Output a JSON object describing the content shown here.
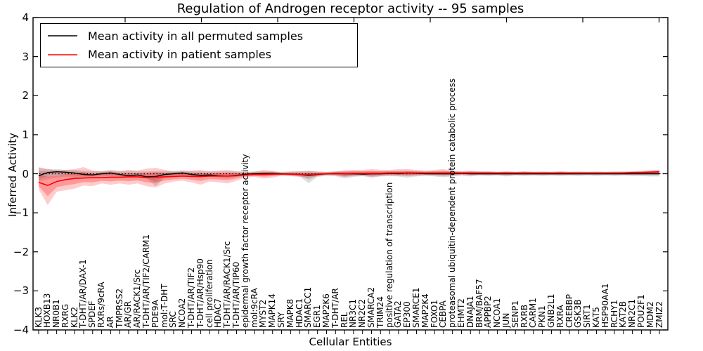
{
  "chart_data": {
    "type": "line",
    "title": "Regulation of Androgen receptor activity -- 95 samples",
    "xlabel": "Cellular Entities",
    "ylabel": "Inferred Activity",
    "ylim": [
      -4,
      4
    ],
    "ytick_labels": [
      "4",
      "3",
      "2",
      "1",
      "0",
      "−1",
      "−2",
      "−3",
      "−4"
    ],
    "ytick_values": [
      4,
      3,
      2,
      1,
      0,
      -1,
      -2,
      -3,
      -4
    ],
    "grid": false,
    "zero_line": {
      "style": "dotted",
      "color": "#000000",
      "y": 0
    },
    "colors": {
      "permuted_line": "#000000",
      "patient_line": "#ff0000",
      "permuted_band": "#999999",
      "patient_band": "#ff0000",
      "axis": "#000000"
    },
    "legend": {
      "position": "upper-left",
      "entries": [
        {
          "label": "Mean activity in all permuted samples",
          "color": "#000000"
        },
        {
          "label": "Mean activity in patient samples",
          "color": "#ff0000"
        }
      ]
    },
    "categories": [
      "KLK3",
      "HOXB13",
      "NR0B1",
      "RXRG",
      "KLK2",
      "T-DHT/AR/DAX-1",
      "SPDEF",
      "RXRs/9cRA",
      "AR",
      "TMPRSS2",
      "AR/GR",
      "AR/RACK1/Src",
      "T-DHT/AR/TIF2/CARM1",
      "PDE9A",
      "mol:T-DHT",
      "SRC",
      "NCOA2",
      "T-DHT/AR/TIF2",
      "T-DHT/AR/Hsp90",
      "cell proliferation",
      "HDAC7",
      "T-DHT/AR/RACK1/Src",
      "T-DHT/AR/TIP60",
      "epidermal growth factor receptor activity",
      "mol:9cRA",
      "MYST2",
      "MAPK14",
      "SRY",
      "MAPK8",
      "HDAC1",
      "SMARCC1",
      "EGR1",
      "MAP2K6",
      "T-DHT/AR",
      "REL",
      "NR3C1",
      "NR2C2",
      "SMARCA2",
      "TRIM24",
      "positive regulation of transcription",
      "GATA2",
      "EP300",
      "SMARCE1",
      "MAP2K4",
      "FOXO1",
      "CEBPA",
      "proteasomal ubiquitin-dependent protein catabolic process",
      "EHMT2",
      "DNAJA1",
      "BRM/BAF57",
      "APPBP2",
      "NCOA1",
      "JUN",
      "SENP1",
      "RXRB",
      "CARM1",
      "PKN1",
      "GNB2L1",
      "RXRA",
      "CREBBP",
      "GSK3B",
      "SIRT1",
      "KAT5",
      "HSP90AA1",
      "RCHY1",
      "KAT2B",
      "NR2C1",
      "POU2F1",
      "MDM2",
      "ZMIZ2"
    ],
    "series": [
      {
        "name": "Mean activity in all permuted samples",
        "color": "#000000",
        "values": [
          -0.05,
          0.03,
          0.05,
          0.04,
          0.02,
          -0.02,
          -0.03,
          0.0,
          0.02,
          -0.02,
          -0.05,
          -0.03,
          -0.08,
          -0.07,
          -0.02,
          0.0,
          0.02,
          -0.02,
          -0.04,
          -0.03,
          -0.05,
          -0.06,
          -0.04,
          -0.02,
          0.0,
          0.0,
          0.01,
          0.0,
          -0.01,
          -0.02,
          -0.04,
          -0.02,
          0.0,
          0.01,
          0.0,
          0.0,
          -0.01,
          0.0,
          0.0,
          0.01,
          0.0,
          0.02,
          0.01,
          0.0,
          0.0,
          0.0,
          0.0,
          0.01,
          0.0,
          0.0,
          0.0,
          0.0,
          0.0,
          0.0,
          0.0,
          0.0,
          0.0,
          0.0,
          0.0,
          0.0,
          0.0,
          0.0,
          0.0,
          0.0,
          0.0,
          0.0,
          0.0,
          0.0,
          0.0,
          0.0
        ]
      },
      {
        "name": "Mean activity in patient samples",
        "color": "#ff0000",
        "values": [
          -0.22,
          -0.3,
          -0.2,
          -0.15,
          -0.12,
          -0.11,
          -0.1,
          -0.1,
          -0.09,
          -0.09,
          -0.08,
          -0.08,
          -0.1,
          -0.09,
          -0.08,
          -0.07,
          -0.06,
          -0.07,
          -0.07,
          -0.06,
          -0.06,
          -0.06,
          -0.05,
          -0.03,
          -0.02,
          -0.02,
          -0.01,
          -0.01,
          -0.01,
          -0.02,
          -0.02,
          -0.01,
          0.0,
          0.0,
          0.0,
          0.01,
          0.01,
          0.01,
          0.01,
          0.02,
          0.02,
          0.02,
          0.02,
          0.02,
          0.02,
          0.02,
          0.02,
          0.02,
          0.02,
          0.02,
          0.02,
          0.02,
          0.02,
          0.02,
          0.02,
          0.02,
          0.02,
          0.02,
          0.02,
          0.02,
          0.02,
          0.02,
          0.02,
          0.02,
          0.02,
          0.02,
          0.03,
          0.03,
          0.04,
          0.05
        ]
      }
    ],
    "bands": [
      {
        "name": "permuted-samples-range",
        "color": "#000000",
        "opacity": 0.13,
        "lower": [
          -0.2,
          -0.14,
          -0.1,
          -0.08,
          -0.1,
          -0.1,
          -0.08,
          -0.07,
          -0.08,
          -0.08,
          -0.1,
          -0.08,
          -0.12,
          -0.32,
          -0.1,
          -0.07,
          -0.06,
          -0.08,
          -0.1,
          -0.08,
          -0.1,
          -0.12,
          -0.08,
          -0.05,
          -0.05,
          -0.05,
          -0.05,
          -0.04,
          -0.05,
          -0.07,
          -0.24,
          -0.08,
          -0.05,
          -0.06,
          -0.12,
          -0.08,
          -0.06,
          -0.1,
          -0.07,
          -0.06,
          -0.07,
          -0.1,
          -0.07,
          -0.05,
          -0.07,
          -0.09,
          -0.07,
          -0.05,
          -0.07,
          -0.05,
          -0.06,
          -0.05,
          -0.07,
          -0.05,
          -0.06,
          -0.05,
          -0.06,
          -0.05,
          -0.06,
          -0.05,
          -0.06,
          -0.05,
          -0.06,
          -0.05,
          -0.06,
          -0.05,
          -0.06,
          -0.06,
          -0.07,
          -0.07
        ],
        "upper": [
          0.17,
          0.12,
          0.12,
          0.1,
          0.1,
          0.08,
          0.07,
          0.07,
          0.09,
          0.07,
          0.07,
          0.07,
          0.06,
          0.07,
          0.07,
          0.07,
          0.09,
          0.07,
          0.06,
          0.06,
          0.06,
          0.06,
          0.06,
          0.05,
          0.06,
          0.06,
          0.06,
          0.05,
          0.06,
          0.06,
          0.08,
          0.06,
          0.05,
          0.06,
          0.07,
          0.07,
          0.06,
          0.07,
          0.07,
          0.07,
          0.07,
          0.08,
          0.07,
          0.06,
          0.06,
          0.07,
          0.06,
          0.06,
          0.06,
          0.06,
          0.06,
          0.05,
          0.06,
          0.05,
          0.06,
          0.05,
          0.06,
          0.05,
          0.06,
          0.05,
          0.06,
          0.05,
          0.06,
          0.05,
          0.06,
          0.05,
          0.06,
          0.06,
          0.07,
          0.08
        ]
      },
      {
        "name": "patient-samples-range",
        "color": "#ff0000",
        "opacity": 0.2,
        "lower": [
          -0.4,
          -0.8,
          -0.46,
          -0.42,
          -0.38,
          -0.3,
          -0.32,
          -0.25,
          -0.28,
          -0.25,
          -0.28,
          -0.25,
          -0.32,
          -0.35,
          -0.25,
          -0.2,
          -0.18,
          -0.22,
          -0.28,
          -0.2,
          -0.22,
          -0.25,
          -0.18,
          -0.1,
          -0.08,
          -0.12,
          -0.1,
          -0.05,
          -0.06,
          -0.08,
          -0.1,
          -0.06,
          -0.04,
          -0.05,
          -0.08,
          -0.06,
          -0.05,
          -0.08,
          -0.06,
          -0.05,
          -0.05,
          -0.06,
          -0.05,
          -0.04,
          -0.04,
          -0.05,
          -0.04,
          -0.03,
          -0.04,
          -0.03,
          -0.03,
          -0.03,
          -0.04,
          -0.03,
          -0.03,
          -0.03,
          -0.03,
          -0.03,
          -0.03,
          -0.03,
          -0.02,
          -0.02,
          -0.02,
          -0.02,
          -0.02,
          -0.02,
          -0.02,
          -0.02,
          -0.01,
          -0.01
        ],
        "upper": [
          0.15,
          0.12,
          0.08,
          0.1,
          0.12,
          0.17,
          0.08,
          0.06,
          0.09,
          0.07,
          0.1,
          0.08,
          0.13,
          0.15,
          0.1,
          0.06,
          0.06,
          0.08,
          0.1,
          0.06,
          0.08,
          0.1,
          0.06,
          0.04,
          0.05,
          0.1,
          0.07,
          0.03,
          0.05,
          0.06,
          0.07,
          0.05,
          0.04,
          0.06,
          0.09,
          0.1,
          0.1,
          0.12,
          0.1,
          0.1,
          0.12,
          0.12,
          0.1,
          0.08,
          0.1,
          0.12,
          0.08,
          0.06,
          0.08,
          0.06,
          0.06,
          0.05,
          0.06,
          0.05,
          0.06,
          0.05,
          0.05,
          0.05,
          0.06,
          0.05,
          0.05,
          0.05,
          0.05,
          0.05,
          0.05,
          0.06,
          0.06,
          0.08,
          0.09,
          0.1
        ]
      }
    ]
  }
}
